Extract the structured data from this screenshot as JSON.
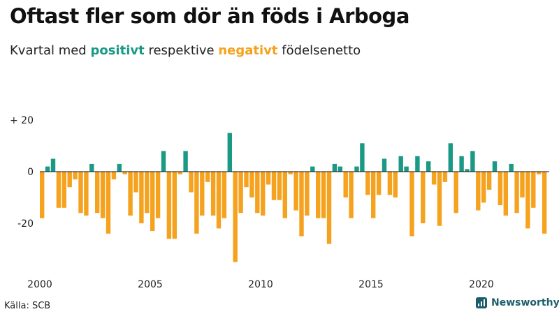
{
  "title": "Oftast fler som dör än föds i Arboga",
  "subtitle": {
    "prefix": "Kvartal med",
    "positive_word": "positivt",
    "middle": "respektive",
    "negative_word": "negativt",
    "suffix": "födelsenetto"
  },
  "source": "Källa: SCB",
  "brand": "Newsworthy",
  "colors": {
    "positive": "#1a9985",
    "negative": "#f5a21e",
    "brand": "#1b5e6b"
  },
  "chart_data": {
    "type": "bar",
    "x_start": 2000,
    "periods_per_year": 4,
    "ylim": [
      -35,
      20
    ],
    "yticks": [
      20,
      0,
      -20
    ],
    "ytick_labels": [
      "+ 20",
      "0",
      "-20"
    ],
    "xticks": [
      2000,
      2005,
      2010,
      2015,
      2020
    ],
    "xtick_labels": [
      "2000",
      "2005",
      "2010",
      "2015",
      "2020"
    ],
    "values": [
      -18,
      2,
      5,
      -14,
      -14,
      -6,
      -3,
      -16,
      -17,
      3,
      -16,
      -18,
      -24,
      -3,
      3,
      -1,
      -17,
      -8,
      -20,
      -16,
      -23,
      -18,
      8,
      -26,
      -26,
      -1,
      8,
      -8,
      -24,
      -17,
      -4,
      -17,
      -22,
      -18,
      15,
      -35,
      -16,
      -6,
      -10,
      -16,
      -17,
      -5,
      -11,
      -11,
      -18,
      -1,
      -15,
      -25,
      -17,
      2,
      -18,
      -18,
      -28,
      3,
      2,
      -10,
      -18,
      2,
      11,
      -9,
      -18,
      -9,
      5,
      -9,
      -10,
      6,
      2,
      -25,
      6,
      -20,
      4,
      -5,
      -21,
      -4,
      11,
      -16,
      6,
      1,
      8,
      -15,
      -12,
      -7,
      4,
      -13,
      -17,
      3,
      -16,
      -10,
      -22,
      -14,
      -1,
      -24
    ]
  }
}
